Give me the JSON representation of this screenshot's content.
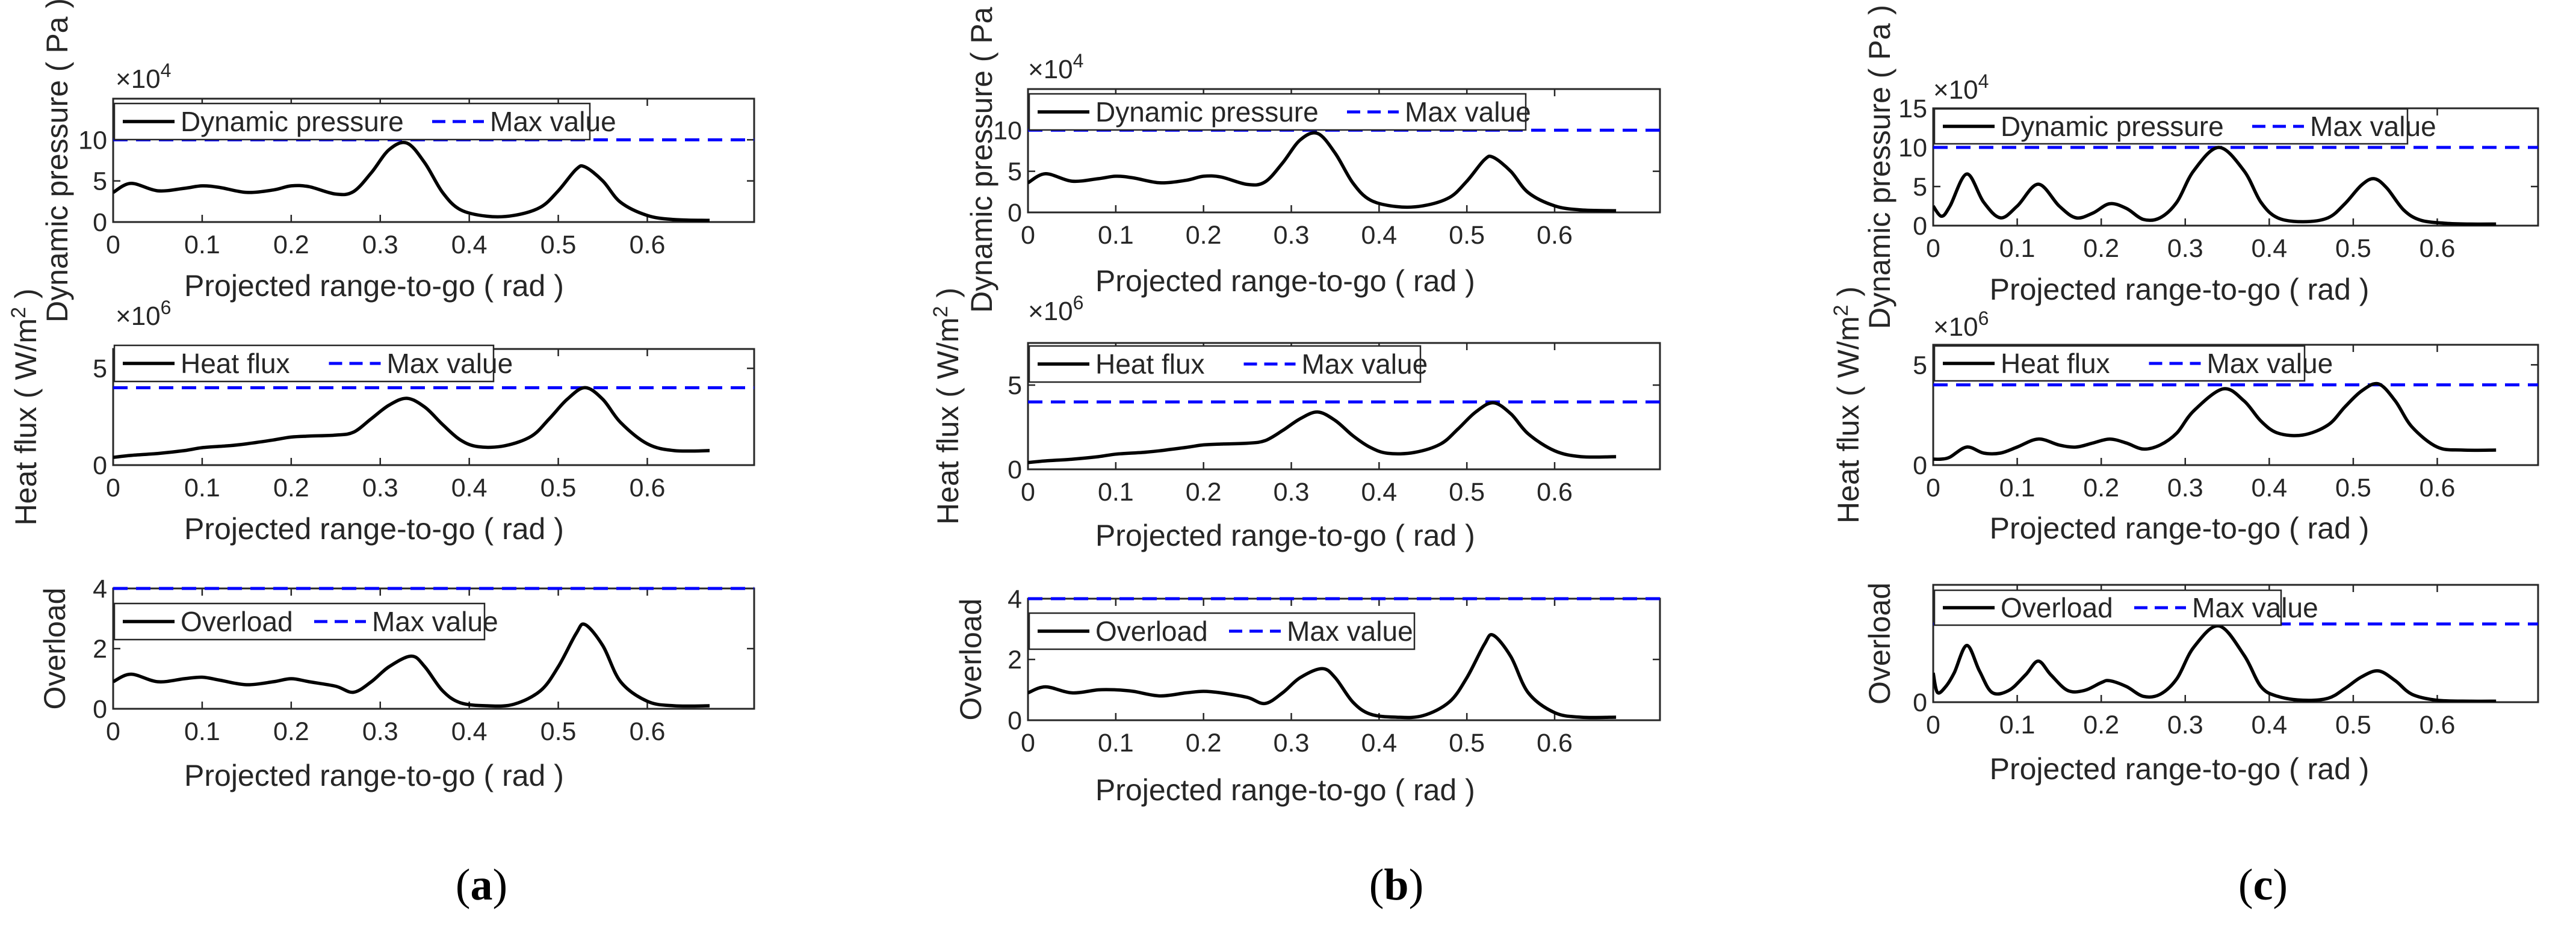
{
  "figure": {
    "panels": [
      {
        "id": "a",
        "caption_letter": "a"
      },
      {
        "id": "b",
        "caption_letter": "b"
      },
      {
        "id": "c",
        "caption_letter": "c"
      }
    ]
  },
  "colors": {
    "curve": "#000000",
    "max_line": "#0000ff",
    "axis": "#262626"
  },
  "chart_data": [
    {
      "panel": "a",
      "type": "line",
      "title": "",
      "xlabel": "Projected range-to-go ( rad )",
      "ylabel": "Dynamic pressure ( Pa )",
      "multiplier": "×10",
      "multiplier_exp": "4",
      "xlim": [
        0,
        0.72
      ],
      "ylim": [
        0,
        15
      ],
      "xticks": [
        0,
        0.1,
        0.2,
        0.3,
        0.4,
        0.5,
        0.6
      ],
      "xtick_labels": [
        "0",
        "0.1",
        "0.2",
        "0.3",
        "0.4",
        "0.5",
        "0.6"
      ],
      "yticks": [
        0,
        5,
        10
      ],
      "ytick_labels": [
        "0",
        "5",
        "10"
      ],
      "legend": {
        "position": "top-left",
        "entries": [
          "Dynamic pressure",
          "Max value"
        ]
      },
      "max_value": 10,
      "series": [
        {
          "name": "Dynamic pressure",
          "style": "solid",
          "x": [
            0,
            0.02,
            0.05,
            0.08,
            0.1,
            0.12,
            0.15,
            0.18,
            0.2,
            0.22,
            0.25,
            0.27,
            0.29,
            0.31,
            0.33,
            0.35,
            0.37,
            0.39,
            0.42,
            0.45,
            0.48,
            0.5,
            0.52,
            0.53,
            0.55,
            0.57,
            0.6,
            0.63,
            0.67
          ],
          "y": [
            3.6,
            4.7,
            3.8,
            4.1,
            4.4,
            4.2,
            3.6,
            3.9,
            4.4,
            4.3,
            3.4,
            3.7,
            6.0,
            8.8,
            9.6,
            7.2,
            3.6,
            1.5,
            0.7,
            0.8,
            1.8,
            3.8,
            6.4,
            6.7,
            5.0,
            2.4,
            0.8,
            0.3,
            0.2
          ]
        }
      ]
    },
    {
      "panel": "a",
      "type": "line",
      "title": "",
      "xlabel": "Projected range-to-go ( rad )",
      "ylabel": "Heat flux ( W/m2 )",
      "multiplier": "×10",
      "multiplier_exp": "6",
      "xlim": [
        0,
        0.72
      ],
      "ylim": [
        0,
        6
      ],
      "xticks": [
        0,
        0.1,
        0.2,
        0.3,
        0.4,
        0.5,
        0.6
      ],
      "xtick_labels": [
        "0",
        "0.1",
        "0.2",
        "0.3",
        "0.4",
        "0.5",
        "0.6"
      ],
      "yticks": [
        0,
        5
      ],
      "ytick_labels": [
        "0",
        "5"
      ],
      "legend": {
        "position": "top-left",
        "entries": [
          "Heat flux",
          "Max value"
        ]
      },
      "max_value": 4,
      "series": [
        {
          "name": "Heat flux",
          "style": "solid",
          "x": [
            0,
            0.02,
            0.05,
            0.08,
            0.1,
            0.13,
            0.15,
            0.18,
            0.2,
            0.22,
            0.25,
            0.27,
            0.29,
            0.31,
            0.33,
            0.35,
            0.37,
            0.39,
            0.41,
            0.44,
            0.47,
            0.49,
            0.51,
            0.53,
            0.55,
            0.57,
            0.6,
            0.63,
            0.67
          ],
          "y": [
            0.4,
            0.5,
            0.6,
            0.75,
            0.9,
            1.0,
            1.1,
            1.3,
            1.45,
            1.5,
            1.55,
            1.7,
            2.4,
            3.1,
            3.45,
            3.0,
            2.1,
            1.3,
            0.95,
            1.0,
            1.5,
            2.4,
            3.4,
            4.0,
            3.4,
            2.2,
            1.1,
            0.75,
            0.75
          ]
        }
      ]
    },
    {
      "panel": "a",
      "type": "line",
      "title": "",
      "xlabel": "Projected range-to-go ( rad )",
      "ylabel": "Overload",
      "multiplier": "",
      "multiplier_exp": "",
      "xlim": [
        0,
        0.72
      ],
      "ylim": [
        0,
        4
      ],
      "xticks": [
        0,
        0.1,
        0.2,
        0.3,
        0.4,
        0.5,
        0.6
      ],
      "xtick_labels": [
        "0",
        "0.1",
        "0.2",
        "0.3",
        "0.4",
        "0.5",
        "0.6"
      ],
      "yticks": [
        0,
        2,
        4
      ],
      "ytick_labels": [
        "0",
        "2",
        "4"
      ],
      "legend": {
        "position": "top-left",
        "entries": [
          "Overload",
          "Max value"
        ]
      },
      "max_value": 4,
      "series": [
        {
          "name": "Overload",
          "style": "solid",
          "x": [
            0,
            0.02,
            0.05,
            0.08,
            0.1,
            0.12,
            0.15,
            0.18,
            0.2,
            0.22,
            0.25,
            0.27,
            0.29,
            0.31,
            0.335,
            0.35,
            0.37,
            0.39,
            0.42,
            0.45,
            0.48,
            0.5,
            0.52,
            0.53,
            0.55,
            0.57,
            0.6,
            0.63,
            0.67
          ],
          "y": [
            0.9,
            1.15,
            0.9,
            1.0,
            1.05,
            0.95,
            0.8,
            0.9,
            1.0,
            0.9,
            0.75,
            0.55,
            0.9,
            1.4,
            1.75,
            1.4,
            0.6,
            0.2,
            0.1,
            0.15,
            0.6,
            1.4,
            2.5,
            2.8,
            2.1,
            0.9,
            0.25,
            0.1,
            0.1
          ]
        }
      ]
    },
    {
      "panel": "b",
      "type": "line",
      "title": "",
      "xlabel": "Projected range-to-go ( rad )",
      "ylabel": "Dynamic pressure ( Pa )",
      "multiplier": "×10",
      "multiplier_exp": "4",
      "xlim": [
        0,
        0.72
      ],
      "ylim": [
        0,
        15
      ],
      "xticks": [
        0,
        0.1,
        0.2,
        0.3,
        0.4,
        0.5,
        0.6
      ],
      "xtick_labels": [
        "0",
        "0.1",
        "0.2",
        "0.3",
        "0.4",
        "0.5",
        "0.6"
      ],
      "yticks": [
        0,
        5,
        10
      ],
      "ytick_labels": [
        "0",
        "5",
        "10"
      ],
      "legend": {
        "position": "top-left",
        "entries": [
          "Dynamic pressure",
          "Max value"
        ]
      },
      "max_value": 10,
      "series": [
        {
          "name": "Dynamic pressure",
          "style": "solid",
          "x": [
            0,
            0.02,
            0.05,
            0.08,
            0.1,
            0.12,
            0.15,
            0.18,
            0.2,
            0.22,
            0.25,
            0.27,
            0.29,
            0.31,
            0.33,
            0.35,
            0.37,
            0.39,
            0.42,
            0.45,
            0.48,
            0.5,
            0.52,
            0.53,
            0.55,
            0.57,
            0.6,
            0.63,
            0.67
          ],
          "y": [
            3.6,
            4.7,
            3.8,
            4.1,
            4.4,
            4.2,
            3.6,
            3.9,
            4.4,
            4.3,
            3.4,
            3.7,
            6.0,
            8.8,
            9.6,
            7.2,
            3.6,
            1.5,
            0.7,
            0.8,
            1.8,
            3.8,
            6.4,
            6.7,
            5.0,
            2.4,
            0.8,
            0.3,
            0.2
          ]
        }
      ]
    },
    {
      "panel": "b",
      "type": "line",
      "title": "",
      "xlabel": "Projected range-to-go ( rad )",
      "ylabel": "Heat flux ( W/m2 )",
      "multiplier": "×10",
      "multiplier_exp": "6",
      "xlim": [
        0,
        0.72
      ],
      "ylim": [
        0,
        7.5
      ],
      "xticks": [
        0,
        0.1,
        0.2,
        0.3,
        0.4,
        0.5,
        0.6
      ],
      "xtick_labels": [
        "0",
        "0.1",
        "0.2",
        "0.3",
        "0.4",
        "0.5",
        "0.6"
      ],
      "yticks": [
        0,
        5
      ],
      "ytick_labels": [
        "0",
        "5"
      ],
      "legend": {
        "position": "top-left",
        "entries": [
          "Heat flux",
          "Max value"
        ]
      },
      "max_value": 4,
      "series": [
        {
          "name": "Heat flux",
          "style": "solid",
          "x": [
            0,
            0.02,
            0.05,
            0.08,
            0.1,
            0.13,
            0.15,
            0.18,
            0.2,
            0.22,
            0.25,
            0.27,
            0.29,
            0.31,
            0.33,
            0.35,
            0.37,
            0.39,
            0.41,
            0.44,
            0.47,
            0.49,
            0.51,
            0.53,
            0.55,
            0.57,
            0.6,
            0.63,
            0.67
          ],
          "y": [
            0.4,
            0.5,
            0.6,
            0.75,
            0.9,
            1.0,
            1.1,
            1.3,
            1.45,
            1.5,
            1.55,
            1.7,
            2.3,
            3.0,
            3.4,
            2.9,
            2.0,
            1.3,
            0.95,
            1.0,
            1.5,
            2.4,
            3.4,
            3.95,
            3.3,
            2.1,
            1.1,
            0.75,
            0.75
          ]
        }
      ]
    },
    {
      "panel": "b",
      "type": "line",
      "title": "",
      "xlabel": "Projected range-to-go ( rad )",
      "ylabel": "Overload",
      "multiplier": "",
      "multiplier_exp": "",
      "xlim": [
        0,
        0.72
      ],
      "ylim": [
        0,
        4
      ],
      "xticks": [
        0,
        0.1,
        0.2,
        0.3,
        0.4,
        0.5,
        0.6
      ],
      "xtick_labels": [
        "0",
        "0.1",
        "0.2",
        "0.3",
        "0.4",
        "0.5",
        "0.6"
      ],
      "yticks": [
        0,
        2,
        4
      ],
      "ytick_labels": [
        "0",
        "2",
        "4"
      ],
      "legend": {
        "position": "top-left",
        "entries": [
          "Overload",
          "Max value"
        ]
      },
      "max_value": 4,
      "series": [
        {
          "name": "Overload",
          "style": "solid",
          "x": [
            0,
            0.02,
            0.05,
            0.08,
            0.1,
            0.12,
            0.15,
            0.18,
            0.2,
            0.22,
            0.25,
            0.27,
            0.29,
            0.31,
            0.335,
            0.35,
            0.37,
            0.39,
            0.42,
            0.45,
            0.48,
            0.5,
            0.52,
            0.53,
            0.55,
            0.57,
            0.6,
            0.63,
            0.67
          ],
          "y": [
            0.9,
            1.1,
            0.9,
            1.0,
            1.0,
            0.95,
            0.8,
            0.9,
            0.95,
            0.9,
            0.75,
            0.55,
            0.9,
            1.4,
            1.7,
            1.4,
            0.6,
            0.2,
            0.1,
            0.15,
            0.6,
            1.4,
            2.5,
            2.8,
            2.1,
            0.9,
            0.25,
            0.1,
            0.1
          ]
        }
      ]
    },
    {
      "panel": "c",
      "type": "line",
      "title": "",
      "xlabel": "Projected range-to-go ( rad )",
      "ylabel": "Dynamic pressure ( Pa )",
      "multiplier": "×10",
      "multiplier_exp": "4",
      "xlim": [
        0,
        0.72
      ],
      "ylim": [
        0,
        15
      ],
      "xticks": [
        0,
        0.1,
        0.2,
        0.3,
        0.4,
        0.5,
        0.6
      ],
      "xtick_labels": [
        "0",
        "0.1",
        "0.2",
        "0.3",
        "0.4",
        "0.5",
        "0.6"
      ],
      "yticks": [
        0,
        5,
        10,
        15
      ],
      "ytick_labels": [
        "0",
        "5",
        "10",
        "15"
      ],
      "legend": {
        "position": "top-left",
        "entries": [
          "Dynamic pressure",
          "Max value"
        ]
      },
      "max_value": 10,
      "series": [
        {
          "name": "Dynamic pressure",
          "style": "solid",
          "x": [
            0,
            0.01,
            0.02,
            0.04,
            0.06,
            0.08,
            0.1,
            0.125,
            0.15,
            0.17,
            0.19,
            0.21,
            0.23,
            0.25,
            0.27,
            0.29,
            0.31,
            0.34,
            0.37,
            0.39,
            0.41,
            0.44,
            0.47,
            0.49,
            0.51,
            0.525,
            0.54,
            0.56,
            0.58,
            0.61,
            0.64,
            0.67
          ],
          "y": [
            2.5,
            1.2,
            2.5,
            6.6,
            3.0,
            1.0,
            2.5,
            5.3,
            2.5,
            1.0,
            1.6,
            2.8,
            2.2,
            0.8,
            1.0,
            3.0,
            7.0,
            10.0,
            7.0,
            3.0,
            1.0,
            0.5,
            1.0,
            2.8,
            5.2,
            6.0,
            4.8,
            2.0,
            0.7,
            0.3,
            0.2,
            0.2
          ]
        }
      ]
    },
    {
      "panel": "c",
      "type": "line",
      "title": "",
      "xlabel": "Projected range-to-go ( rad )",
      "ylabel": "Heat flux ( W/m2 )",
      "multiplier": "×10",
      "multiplier_exp": "6",
      "xlim": [
        0,
        0.72
      ],
      "ylim": [
        0,
        6
      ],
      "xticks": [
        0,
        0.1,
        0.2,
        0.3,
        0.4,
        0.5,
        0.6
      ],
      "xtick_labels": [
        "0",
        "0.1",
        "0.2",
        "0.3",
        "0.4",
        "0.5",
        "0.6"
      ],
      "yticks": [
        0,
        5
      ],
      "ytick_labels": [
        "0",
        "5"
      ],
      "legend": {
        "position": "top-left",
        "entries": [
          "Heat flux",
          "Max value"
        ]
      },
      "max_value": 4,
      "series": [
        {
          "name": "Heat flux",
          "style": "solid",
          "x": [
            0,
            0.01,
            0.02,
            0.04,
            0.06,
            0.08,
            0.1,
            0.125,
            0.15,
            0.17,
            0.19,
            0.21,
            0.23,
            0.25,
            0.27,
            0.29,
            0.31,
            0.345,
            0.37,
            0.39,
            0.41,
            0.44,
            0.47,
            0.49,
            0.51,
            0.53,
            0.55,
            0.57,
            0.6,
            0.63,
            0.67
          ],
          "y": [
            0.3,
            0.3,
            0.4,
            0.9,
            0.6,
            0.6,
            0.9,
            1.3,
            1.0,
            0.9,
            1.1,
            1.3,
            1.1,
            0.8,
            1.0,
            1.6,
            2.7,
            3.8,
            3.2,
            2.2,
            1.6,
            1.5,
            2.0,
            2.9,
            3.7,
            4.05,
            3.2,
            1.9,
            0.9,
            0.75,
            0.75
          ]
        }
      ]
    },
    {
      "panel": "c",
      "type": "line",
      "title": "",
      "xlabel": "Projected range-to-go ( rad )",
      "ylabel": "Overload",
      "multiplier": "",
      "multiplier_exp": "",
      "xlim": [
        0,
        0.72
      ],
      "ylim": [
        0,
        6
      ],
      "xticks": [
        0,
        0.1,
        0.2,
        0.3,
        0.4,
        0.5,
        0.6
      ],
      "xtick_labels": [
        "0",
        "0.1",
        "0.2",
        "0.3",
        "0.4",
        "0.5",
        "0.6"
      ],
      "yticks": [
        0
      ],
      "ytick_labels": [
        "0"
      ],
      "legend": {
        "position": "top-left",
        "entries": [
          "Overload",
          "Max value"
        ]
      },
      "max_value": 4,
      "series": [
        {
          "name": "Overload",
          "style": "solid",
          "x": [
            0,
            0.005,
            0.015,
            0.025,
            0.04,
            0.055,
            0.07,
            0.09,
            0.11,
            0.125,
            0.14,
            0.16,
            0.18,
            0.2,
            0.21,
            0.23,
            0.25,
            0.27,
            0.29,
            0.31,
            0.34,
            0.37,
            0.39,
            0.41,
            0.44,
            0.47,
            0.49,
            0.51,
            0.53,
            0.55,
            0.57,
            0.6,
            0.64,
            0.67
          ],
          "y": [
            1.5,
            0.5,
            0.8,
            1.5,
            2.9,
            1.6,
            0.5,
            0.6,
            1.4,
            2.1,
            1.4,
            0.6,
            0.6,
            1.0,
            1.1,
            0.8,
            0.3,
            0.4,
            1.2,
            2.8,
            3.9,
            2.4,
            0.8,
            0.3,
            0.1,
            0.2,
            0.7,
            1.3,
            1.6,
            1.1,
            0.4,
            0.1,
            0.05,
            0.05
          ]
        }
      ]
    }
  ]
}
